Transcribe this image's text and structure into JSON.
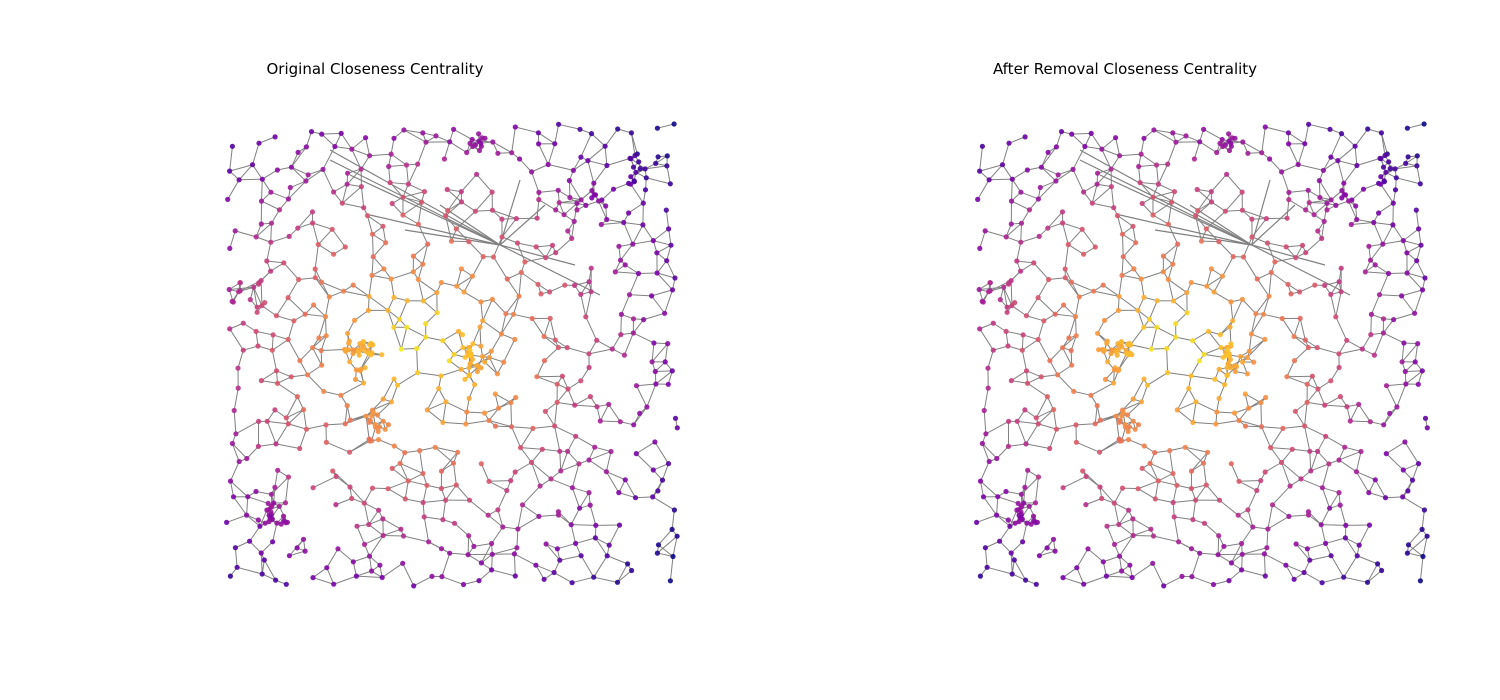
{
  "panels": [
    {
      "id": "original",
      "title": "Original Closeness Centrality"
    },
    {
      "id": "after-removal",
      "title": "After Removal Closeness Centrality"
    }
  ],
  "chart_data": [
    {
      "type": "network-graph",
      "title": "Original Closeness Centrality",
      "node_color_metric": "closeness centrality",
      "colormap": "plasma",
      "node_count_approx": 1000,
      "edge_color": "#808080",
      "axes": "off"
    },
    {
      "type": "network-graph",
      "title": "After Removal Closeness Centrality",
      "node_color_metric": "closeness centrality",
      "colormap": "plasma",
      "node_count_approx": 1000,
      "edge_color": "#808080",
      "axes": "off"
    }
  ]
}
